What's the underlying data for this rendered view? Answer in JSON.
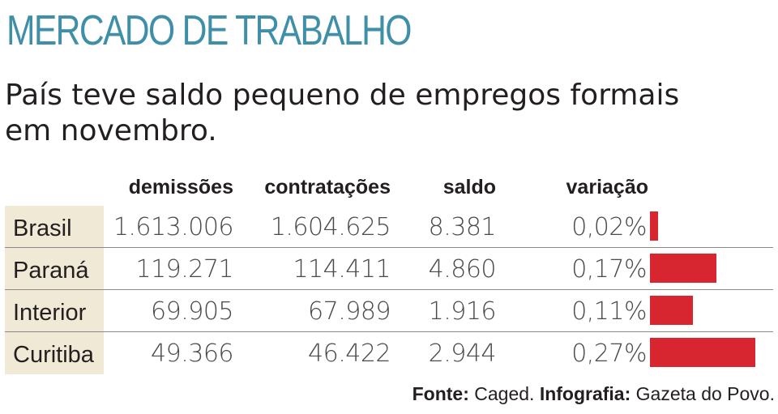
{
  "kicker": "MERCADO DE TRABALHO",
  "headline": {
    "line1": "País teve saldo pequeno de empregos formais",
    "line2": "em novembro."
  },
  "columns": {
    "demissoes": "demissões",
    "contratacoes": "contratações",
    "saldo": "saldo",
    "variacao": "variação"
  },
  "source": {
    "fonte_label": "Fonte:",
    "fonte_value": "Caged.",
    "infografia_label": "Infografia:",
    "infografia_value": "Gazeta do Povo."
  },
  "colors": {
    "kicker": "#3f8fa8",
    "bar": "#d7262f",
    "label_background": "#efe9d6"
  },
  "chart_data": {
    "type": "table",
    "columns": [
      "demissões",
      "contratações",
      "saldo",
      "variação"
    ],
    "rows": [
      {
        "place": "Brasil",
        "demissoes": "1.613.006",
        "contratacoes": "1.604.625",
        "saldo": "8.381",
        "variacao": "0,02%",
        "variacao_value": 0.02
      },
      {
        "place": "Paraná",
        "demissoes": "119.271",
        "contratacoes": "114.411",
        "saldo": "4.860",
        "variacao": "0,17%",
        "variacao_value": 0.17
      },
      {
        "place": "Interior",
        "demissoes": "69.905",
        "contratacoes": "67.989",
        "saldo": "1.916",
        "variacao": "0,11%",
        "variacao_value": 0.11
      },
      {
        "place": "Curitiba",
        "demissoes": "49.366",
        "contratacoes": "46.422",
        "saldo": "2.944",
        "variacao": "0,27%",
        "variacao_value": 0.27
      }
    ],
    "bar_series": "variação"
  }
}
